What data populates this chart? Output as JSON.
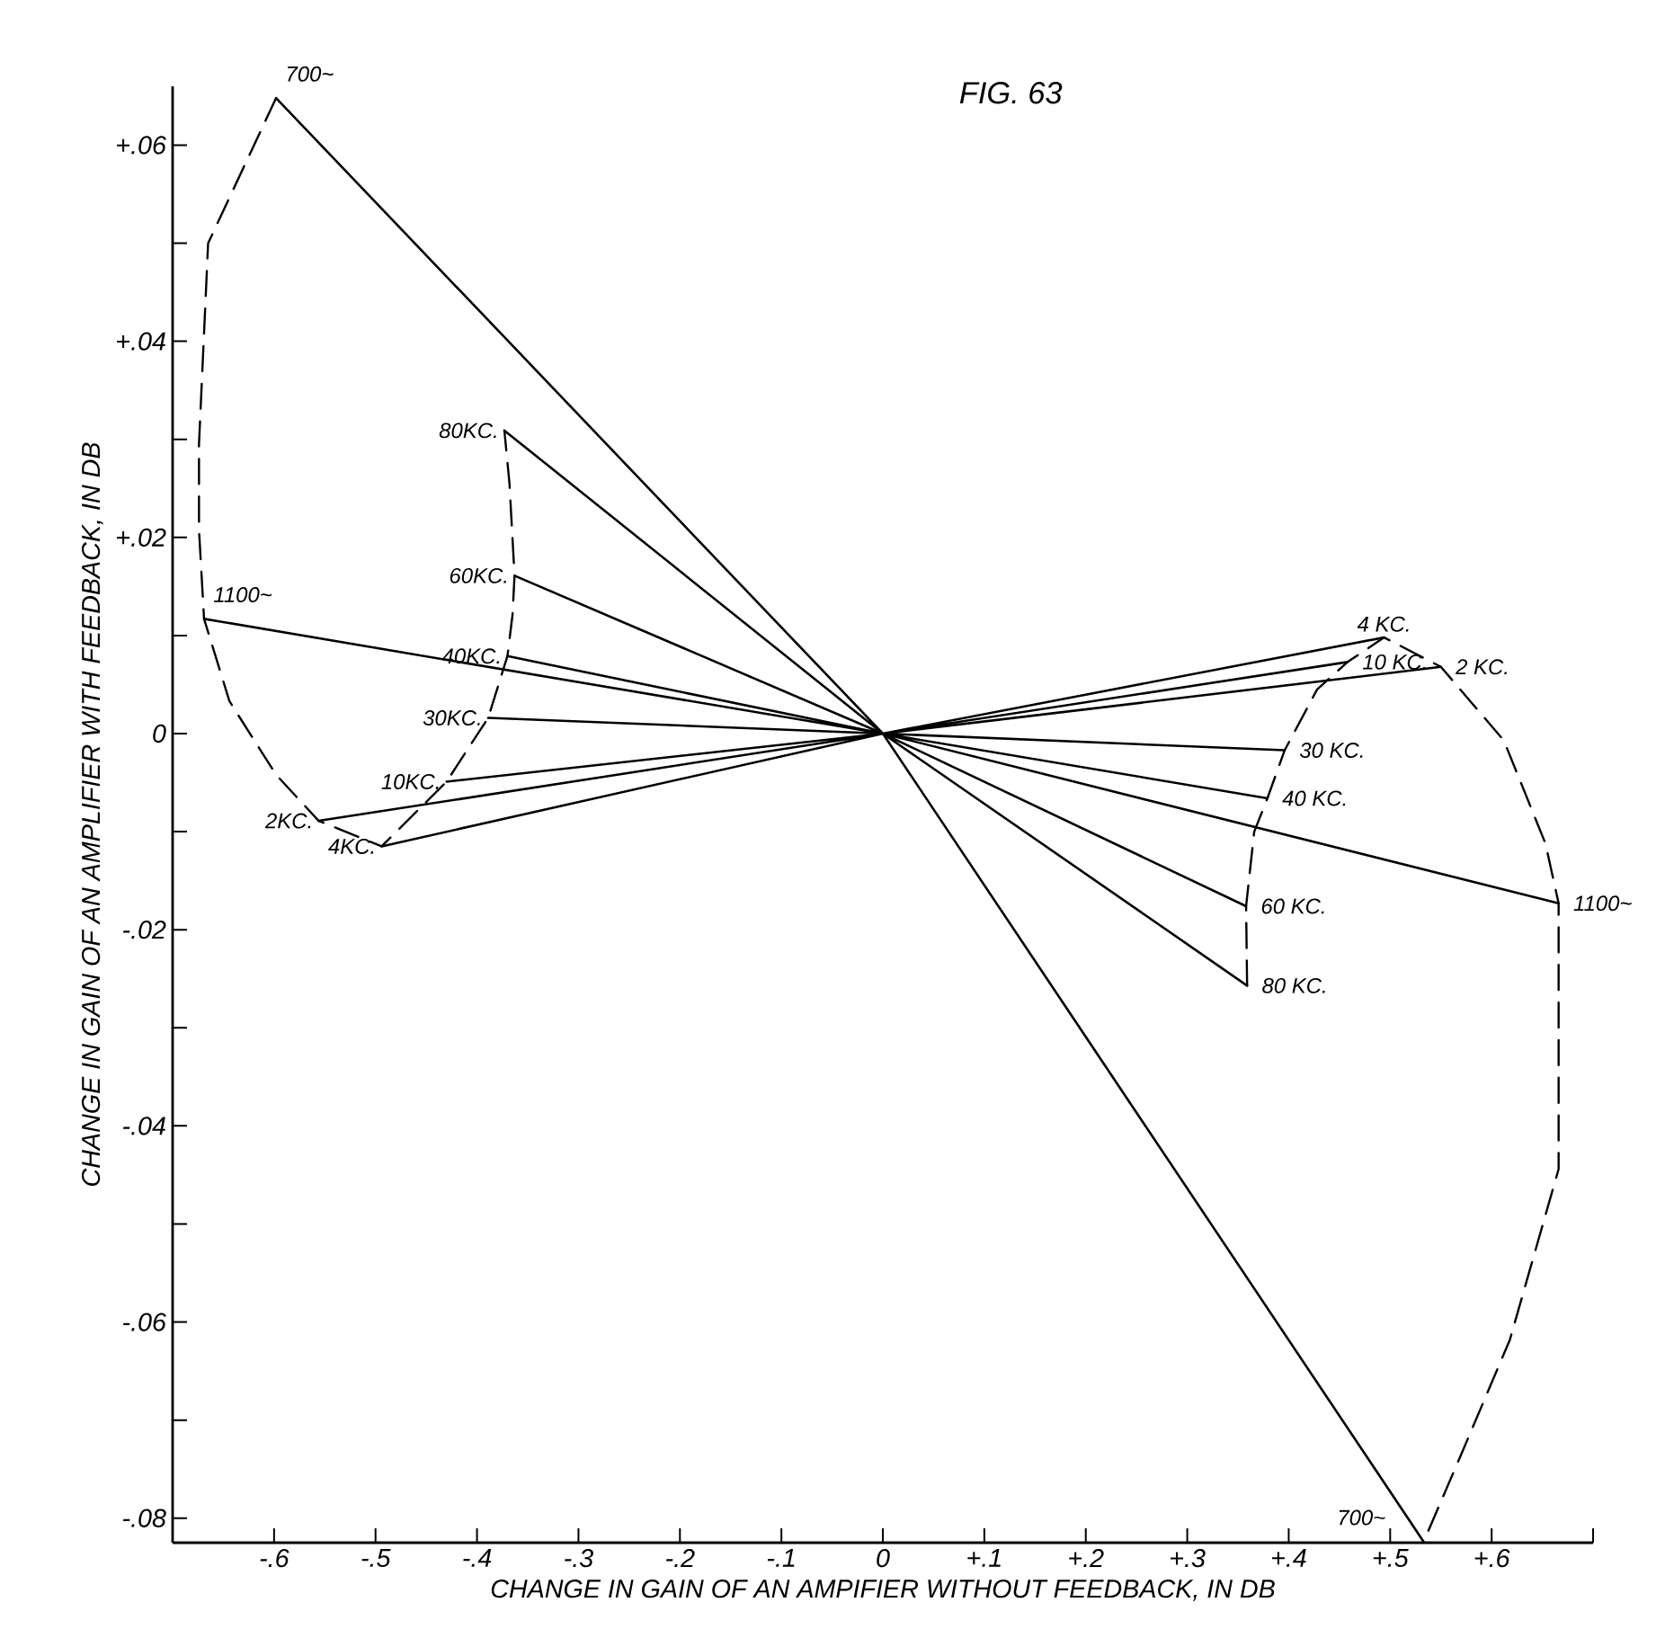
{
  "chart_data": {
    "type": "line",
    "title": "FIG. 63",
    "xlabel": "CHANGE IN GAIN OF AN AMPIFIER WITHOUT FEEDBACK, IN DB",
    "ylabel": "CHANGE IN GAIN OF AN AMPLIFIER WITH FEEDBACK, IN DB",
    "xlim": [
      -0.7,
      0.7
    ],
    "ylim": [
      -0.0825,
      0.066
    ],
    "xticks": [
      {
        "value": -0.6,
        "label": "-.6"
      },
      {
        "value": -0.5,
        "label": "-.5"
      },
      {
        "value": -0.4,
        "label": "-.4"
      },
      {
        "value": -0.3,
        "label": "-.3"
      },
      {
        "value": -0.2,
        "label": "-.2"
      },
      {
        "value": -0.1,
        "label": "-.1"
      },
      0,
      {
        "value": 0.1,
        "label": "+.1"
      },
      {
        "value": 0.2,
        "label": "+.2"
      },
      {
        "value": 0.3,
        "label": "+.3"
      },
      {
        "value": 0.4,
        "label": "+.4"
      },
      {
        "value": 0.5,
        "label": "+.5"
      },
      {
        "value": 0.6,
        "label": "+.6"
      },
      {
        "value": 0.7,
        "label": null
      }
    ],
    "yticks": [
      {
        "value": 0.06,
        "label": "+.06"
      },
      {
        "value": 0.05,
        "label": null
      },
      {
        "value": 0.04,
        "label": "+.04"
      },
      {
        "value": 0.03,
        "label": null
      },
      {
        "value": 0.02,
        "label": "+.02"
      },
      {
        "value": 0.01,
        "label": null
      },
      0,
      {
        "value": -0.01,
        "label": null
      },
      {
        "value": -0.02,
        "label": "-.02"
      },
      {
        "value": -0.03,
        "label": null
      },
      {
        "value": -0.04,
        "label": "-.04"
      },
      {
        "value": -0.05,
        "label": null
      },
      {
        "value": -0.06,
        "label": "-.06"
      },
      {
        "value": -0.07,
        "label": null
      },
      {
        "value": -0.08,
        "label": "-.08"
      }
    ],
    "marker": "none",
    "series": [
      {
        "color": "#000000",
        "line_style": "dashed",
        "x": [
          -0.598,
          -0.665,
          -0.674,
          -0.674,
          -0.669,
          -0.644,
          -0.598,
          -0.556,
          -0.494,
          -0.43,
          -0.389,
          -0.37,
          -0.365,
          -0.363,
          -0.368,
          -0.373
        ],
        "values": [
          0.0648,
          0.05,
          0.0295,
          0.0208,
          0.0117,
          0.0033,
          -0.0042,
          -0.0089,
          -0.0115,
          -0.0049,
          0.0016,
          0.0079,
          0.0121,
          0.0161,
          0.0255,
          0.0309
        ]
      },
      {
        "color": "#000000",
        "line_style": "dashed",
        "x": [
          0.359,
          0.358,
          0.366,
          0.379,
          0.396,
          0.428,
          0.458,
          0.494,
          0.55,
          0.612,
          0.653,
          0.666,
          0.666,
          0.618,
          0.57,
          0.533
        ],
        "values": [
          -0.0257,
          -0.0176,
          -0.01,
          -0.0066,
          -0.0017,
          0.0045,
          0.0073,
          0.0098,
          0.0068,
          -0.0007,
          -0.0112,
          -0.0173,
          -0.0444,
          -0.0618,
          -0.0735,
          -0.0824
        ]
      },
      {
        "color": "#000000",
        "line_style": "solid",
        "x": [
          0,
          -0.598,
          null,
          0,
          -0.669,
          null,
          0,
          -0.373,
          null,
          0,
          -0.363,
          null,
          0,
          -0.37,
          null,
          0,
          -0.389,
          null,
          0,
          -0.43,
          null,
          0,
          -0.556,
          null,
          0,
          -0.494,
          null,
          0,
          0.494,
          null,
          0,
          0.458,
          null,
          0,
          0.55,
          null,
          0,
          0.396,
          null,
          0,
          0.379,
          null,
          0,
          0.666,
          null,
          0,
          0.358,
          null,
          0,
          0.359,
          null,
          0,
          0.533
        ],
        "values": [
          0,
          0.0648,
          null,
          0,
          0.0117,
          null,
          0,
          0.0309,
          null,
          0,
          0.0161,
          null,
          0,
          0.0079,
          null,
          0,
          0.0016,
          null,
          0,
          -0.0049,
          null,
          0,
          -0.0089,
          null,
          0,
          -0.0115,
          null,
          0,
          0.0098,
          null,
          0,
          0.0073,
          null,
          0,
          0.0068,
          null,
          0,
          -0.0017,
          null,
          0,
          -0.0066,
          null,
          0,
          -0.0173,
          null,
          0,
          -0.0176,
          null,
          0,
          -0.0257,
          null,
          0,
          -0.0824
        ]
      }
    ],
    "annotations": [
      {
        "text": "700~",
        "x": -0.598,
        "y": 0.0648
      },
      {
        "text": "1100~",
        "x": -0.669,
        "y": 0.0117
      },
      {
        "text": "80KC.",
        "x": -0.373,
        "y": 0.0309
      },
      {
        "text": "60KC.",
        "x": -0.363,
        "y": 0.0161
      },
      {
        "text": "40KC.",
        "x": -0.37,
        "y": 0.0079
      },
      {
        "text": "30KC.",
        "x": -0.389,
        "y": 0.0016
      },
      {
        "text": "10KC.",
        "x": -0.43,
        "y": -0.0049
      },
      {
        "text": "2KC.",
        "x": -0.556,
        "y": -0.0089
      },
      {
        "text": "4KC.",
        "x": -0.494,
        "y": -0.0115
      },
      {
        "text": "4 KC.",
        "x": 0.494,
        "y": 0.0098
      },
      {
        "text": "10 KC.",
        "x": 0.458,
        "y": 0.0073
      },
      {
        "text": "2 KC.",
        "x": 0.55,
        "y": 0.0068
      },
      {
        "text": "30 KC.",
        "x": 0.396,
        "y": -0.0017
      },
      {
        "text": "40 KC.",
        "x": 0.379,
        "y": -0.0066
      },
      {
        "text": "1100~",
        "x": 0.666,
        "y": -0.0173
      },
      {
        "text": "60 KC.",
        "x": 0.358,
        "y": -0.0176
      },
      {
        "text": "80 KC.",
        "x": 0.359,
        "y": -0.0257
      },
      {
        "text": "700~",
        "x": 0.533,
        "y": -0.0824
      }
    ]
  }
}
